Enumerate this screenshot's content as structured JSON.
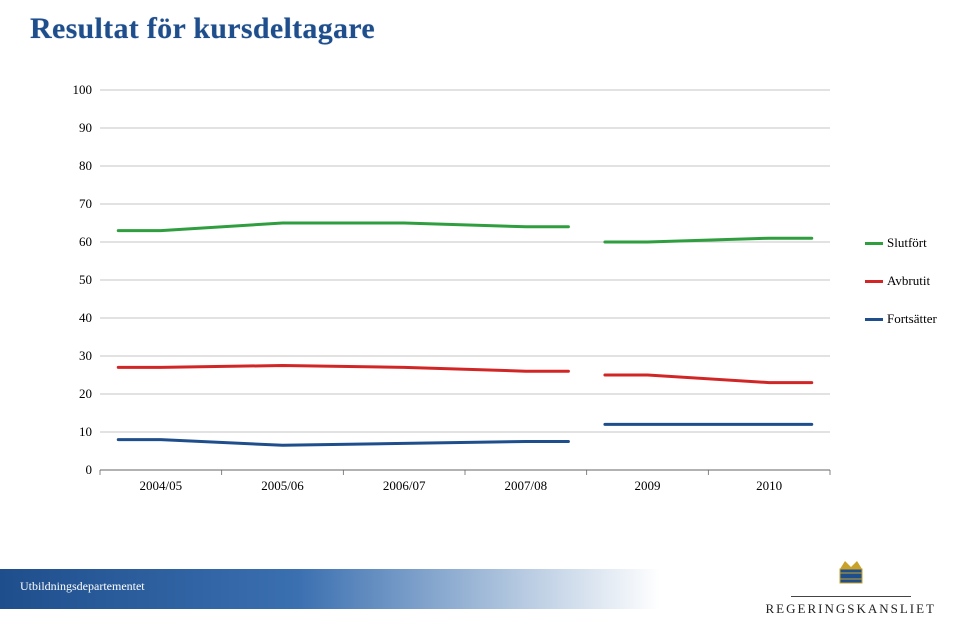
{
  "title": "Resultat för kursdeltagare",
  "chart": {
    "type": "line",
    "ylim": [
      0,
      100
    ],
    "yticks": [
      0,
      10,
      20,
      30,
      40,
      50,
      60,
      70,
      80,
      90,
      100
    ],
    "xcategories": [
      "2004/05",
      "2005/06",
      "2006/07",
      "2007/08",
      "2009",
      "2010"
    ],
    "grid_color": "#b0b0b0",
    "background_color": "#ffffff",
    "tick_fontsize": 13,
    "line_width": 3,
    "break_between_idx": [
      3,
      4
    ],
    "series": [
      {
        "name": "Slutfört",
        "label": "Slutfört",
        "color": "#2e9e3f",
        "legend_y": 60,
        "values": [
          63,
          65,
          65,
          64,
          null,
          60,
          61
        ]
      },
      {
        "name": "Avbrutit",
        "label": "Avbrutit",
        "color": "#d22626",
        "legend_y": 50,
        "values": [
          27,
          27.5,
          27,
          26,
          null,
          25,
          23
        ]
      },
      {
        "name": "Fortsätter",
        "label": "Fortsätter",
        "color": "#1f4e8c",
        "legend_y": 40,
        "values": [
          8,
          6.5,
          7,
          7.5,
          null,
          12,
          12
        ]
      }
    ]
  },
  "footer": {
    "department": "Utbildningsdepartementet",
    "org": "REGERINGSKANSLIET"
  }
}
